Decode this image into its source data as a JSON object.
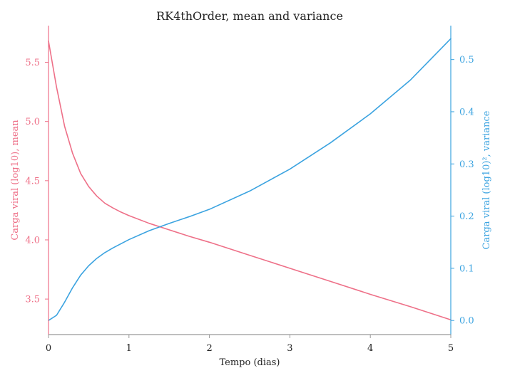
{
  "chart_data": {
    "type": "line",
    "title": "RK4thOrder, mean and variance",
    "xlabel": "Tempo (dias)",
    "ylabel_left": "Carga viral (log10), mean",
    "ylabel_right": "Carga viral (log10)², variance",
    "x_ticks": [
      "0",
      "1",
      "2",
      "3",
      "4",
      "5"
    ],
    "y_left_ticks": [
      "3.5",
      "4.0",
      "4.5",
      "5.0",
      "5.5"
    ],
    "y_right_ticks": [
      "0.0",
      "0.1",
      "0.2",
      "0.3",
      "0.4",
      "0.5"
    ],
    "xlim": [
      0,
      5
    ],
    "ylim_left": [
      3.2,
      5.81
    ],
    "ylim_right": [
      -0.027,
      0.565
    ],
    "grid": false,
    "colors": {
      "mean": "#ee7088",
      "variance": "#3ba3e0",
      "axis": "#999999",
      "text": "#222222"
    },
    "series": [
      {
        "axis": "left",
        "color": "#ee7088",
        "x": [
          0,
          0.1,
          0.2,
          0.3,
          0.4,
          0.5,
          0.6,
          0.7,
          0.8,
          0.9,
          1.0,
          1.25,
          1.5,
          1.75,
          2.0,
          2.5,
          3.0,
          3.5,
          4.0,
          4.5,
          5.0
        ],
        "values": [
          5.68,
          5.29,
          4.96,
          4.73,
          4.56,
          4.45,
          4.37,
          4.31,
          4.27,
          4.235,
          4.205,
          4.14,
          4.085,
          4.03,
          3.98,
          3.87,
          3.76,
          3.65,
          3.54,
          3.435,
          3.325
        ]
      },
      {
        "axis": "right",
        "color": "#3ba3e0",
        "x": [
          0,
          0.1,
          0.2,
          0.3,
          0.4,
          0.5,
          0.6,
          0.7,
          0.8,
          0.9,
          1.0,
          1.25,
          1.5,
          1.75,
          2.0,
          2.5,
          3.0,
          3.5,
          4.0,
          4.5,
          5.0
        ],
        "values": [
          0.0,
          0.01,
          0.035,
          0.063,
          0.087,
          0.105,
          0.119,
          0.13,
          0.139,
          0.147,
          0.155,
          0.172,
          0.186,
          0.199,
          0.213,
          0.248,
          0.29,
          0.34,
          0.396,
          0.461,
          0.54
        ]
      }
    ]
  }
}
